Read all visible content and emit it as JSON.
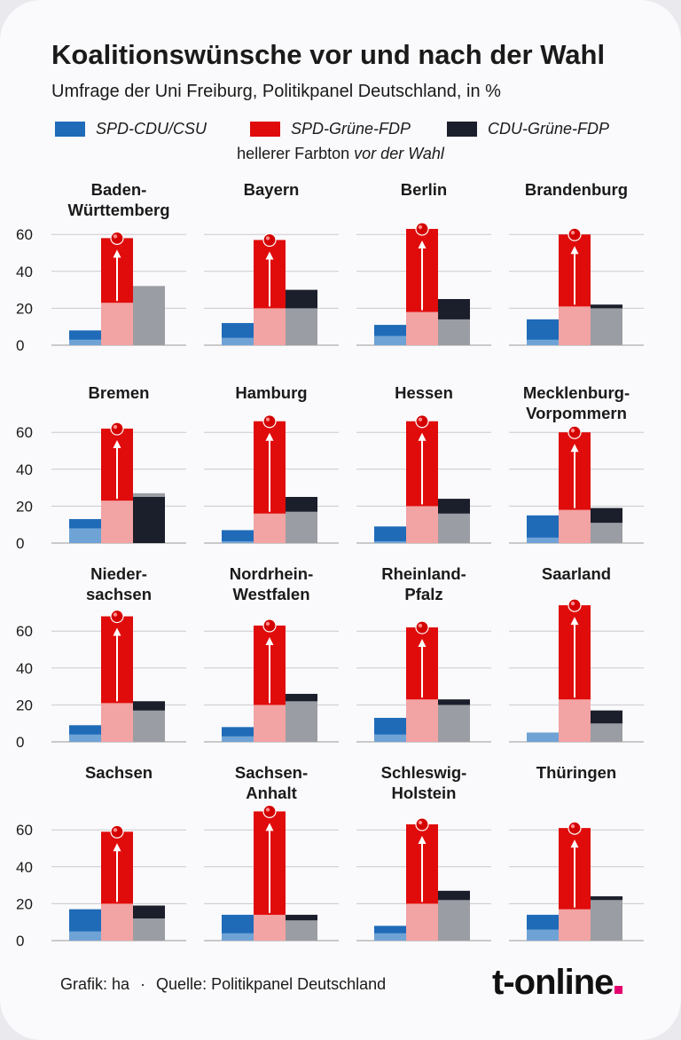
{
  "title": "Koalitionswünsche vor und nach der Wahl",
  "subtitle": "Umfrage der Uni Freiburg, Politikpanel Deutschland, in %",
  "legend": {
    "items": [
      {
        "label": "SPD-CDU/CSU",
        "color": "#1f6bb8"
      },
      {
        "label": "SPD-Grüne-FDP",
        "color": "#e00b0b"
      },
      {
        "label": "CDU-Grüne-FDP",
        "color": "#1b1e2b"
      }
    ],
    "note_prefix": "hellerer Farbton ",
    "note_italic": "vor der Wahl"
  },
  "colors": {
    "spd_cdu_after": "#1f6bb8",
    "spd_cdu_before": "#6fa3d6",
    "ampel_after": "#e00b0b",
    "ampel_before": "#f2a3a3",
    "jamaika_after": "#1b1e2b",
    "jamaika_before": "#9b9da4",
    "grid": "#c9c9cc",
    "arrow": "#ffffff"
  },
  "footer": {
    "credit": "Grafik: ha",
    "separator": "·",
    "source": "Quelle: Politikpanel Deutschland",
    "logo": "t-online"
  },
  "chart_data": {
    "type": "bar",
    "yticks": [
      "0",
      "20",
      "40",
      "60"
    ],
    "ylim": [
      0,
      70
    ],
    "series_names": [
      "SPD-CDU/CSU",
      "SPD-Grüne-FDP",
      "CDU-Grüne-FDP"
    ],
    "panels": [
      {
        "name": "Baden-\nWürttemberg",
        "before": [
          3,
          23,
          32
        ],
        "after": [
          8,
          58,
          32
        ]
      },
      {
        "name": "Bayern",
        "before": [
          4,
          20,
          20
        ],
        "after": [
          12,
          57,
          30
        ]
      },
      {
        "name": "Berlin",
        "before": [
          5,
          18,
          14
        ],
        "after": [
          11,
          63,
          25
        ]
      },
      {
        "name": "Brandenburg",
        "before": [
          3,
          21,
          20
        ],
        "after": [
          14,
          60,
          22
        ]
      },
      {
        "name": "Bremen",
        "before": [
          8,
          23,
          27
        ],
        "after": [
          13,
          62,
          25
        ]
      },
      {
        "name": "Hamburg",
        "before": [
          1,
          16,
          17
        ],
        "after": [
          7,
          66,
          25
        ]
      },
      {
        "name": "Hessen",
        "before": [
          1,
          20,
          16
        ],
        "after": [
          9,
          66,
          24
        ]
      },
      {
        "name": "Mecklenburg-\nVorpommern",
        "before": [
          3,
          18,
          11
        ],
        "after": [
          15,
          60,
          19
        ]
      },
      {
        "name": "Nieder-\nsachsen",
        "before": [
          4,
          21,
          17
        ],
        "after": [
          9,
          68,
          22
        ]
      },
      {
        "name": "Nordrhein-\nWestfalen",
        "before": [
          3,
          20,
          22
        ],
        "after": [
          8,
          63,
          26
        ]
      },
      {
        "name": "Rheinland-\nPfalz",
        "before": [
          4,
          23,
          20
        ],
        "after": [
          13,
          62,
          23
        ]
      },
      {
        "name": "Saarland",
        "before": [
          5,
          23,
          10
        ],
        "after": [
          5,
          74,
          17
        ]
      },
      {
        "name": "Sachsen",
        "before": [
          5,
          20,
          12
        ],
        "after": [
          17,
          59,
          19
        ]
      },
      {
        "name": "Sachsen-\nAnhalt",
        "before": [
          4,
          14,
          11
        ],
        "after": [
          14,
          70,
          14
        ]
      },
      {
        "name": "Schleswig-\nHolstein",
        "before": [
          4,
          20,
          22
        ],
        "after": [
          8,
          63,
          27
        ]
      },
      {
        "name": "Thüringen",
        "before": [
          6,
          17,
          22
        ],
        "after": [
          14,
          61,
          24
        ]
      }
    ]
  }
}
